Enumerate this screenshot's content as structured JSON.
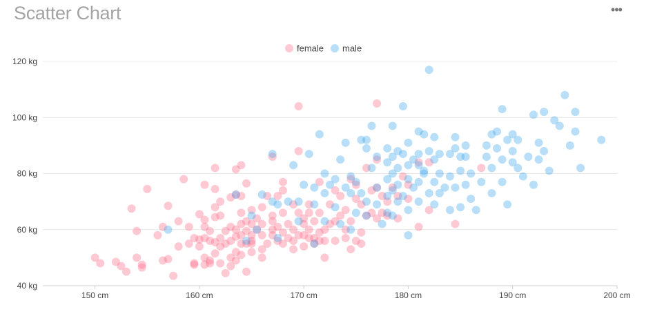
{
  "header": {
    "title": "Scatter Chart",
    "menu_icon": "more-horizontal-icon",
    "menu_glyph": "•••"
  },
  "chart_data": {
    "type": "scatter",
    "title": "Scatter Chart",
    "xlabel": "",
    "ylabel": "",
    "xlim": [
      145,
      200
    ],
    "ylim": [
      40,
      120
    ],
    "x_ticks": [
      150,
      160,
      170,
      180,
      190,
      200
    ],
    "y_ticks": [
      40,
      60,
      80,
      100,
      120
    ],
    "x_tick_labels": [
      "150 cm",
      "160 cm",
      "170 cm",
      "180 cm",
      "190 cm",
      "200 cm"
    ],
    "y_tick_labels": [
      "40 kg",
      "60 kg",
      "80 kg",
      "100 kg",
      "120 kg"
    ],
    "grid": true,
    "legend_position": "top-center",
    "series": [
      {
        "name": "female",
        "color": "#ff6384",
        "points": [
          [
            150,
            50
          ],
          [
            150.5,
            48
          ],
          [
            152,
            48.5
          ],
          [
            152.5,
            47
          ],
          [
            153,
            45
          ],
          [
            153.5,
            67.5
          ],
          [
            154,
            59.5
          ],
          [
            154,
            50
          ],
          [
            154.5,
            47.5
          ],
          [
            154.5,
            46.5
          ],
          [
            155,
            74.5
          ],
          [
            156,
            58
          ],
          [
            156.5,
            61
          ],
          [
            157,
            68.5
          ],
          [
            156.5,
            49
          ],
          [
            157,
            49.5
          ],
          [
            157.5,
            43.5
          ],
          [
            158,
            54
          ],
          [
            158,
            63
          ],
          [
            158.5,
            78
          ],
          [
            159,
            55
          ],
          [
            159,
            61
          ],
          [
            159.5,
            48
          ],
          [
            159.5,
            47.5
          ],
          [
            159.5,
            57
          ],
          [
            160,
            56.5
          ],
          [
            160,
            54
          ],
          [
            160,
            65.5
          ],
          [
            160.5,
            76
          ],
          [
            160.5,
            63.5
          ],
          [
            160.5,
            61
          ],
          [
            160.5,
            57
          ],
          [
            160.5,
            50
          ],
          [
            160.5,
            47.5
          ],
          [
            161,
            59.5
          ],
          [
            161,
            56
          ],
          [
            161,
            49
          ],
          [
            161,
            48
          ],
          [
            161.5,
            82
          ],
          [
            161.5,
            74.5
          ],
          [
            161.5,
            68
          ],
          [
            161.5,
            64.5
          ],
          [
            161.5,
            55.5
          ],
          [
            161.5,
            51.5
          ],
          [
            162,
            70
          ],
          [
            162,
            65
          ],
          [
            162,
            57
          ],
          [
            162,
            54
          ],
          [
            162,
            48
          ],
          [
            162.5,
            59.5
          ],
          [
            162.5,
            55
          ],
          [
            162.5,
            44.5
          ],
          [
            163,
            71.5
          ],
          [
            163,
            61
          ],
          [
            163,
            56
          ],
          [
            163,
            50
          ],
          [
            163,
            47
          ],
          [
            163.5,
            81.5
          ],
          [
            163.5,
            72.5
          ],
          [
            163.5,
            60
          ],
          [
            163.5,
            57.5
          ],
          [
            163.5,
            52
          ],
          [
            163.5,
            49
          ],
          [
            164,
            83
          ],
          [
            164,
            72
          ],
          [
            164,
            66
          ],
          [
            164,
            62
          ],
          [
            164,
            58
          ],
          [
            164,
            55
          ],
          [
            164,
            51
          ],
          [
            164.5,
            76.5
          ],
          [
            164.5,
            63
          ],
          [
            164.5,
            59.5
          ],
          [
            164.5,
            55
          ],
          [
            164.5,
            45
          ],
          [
            165,
            67
          ],
          [
            165,
            62
          ],
          [
            165,
            58
          ],
          [
            165,
            56
          ],
          [
            165,
            55
          ],
          [
            165,
            52
          ],
          [
            165.5,
            60
          ],
          [
            165.5,
            64
          ],
          [
            166,
            50
          ],
          [
            166,
            53
          ],
          [
            166,
            58
          ],
          [
            166,
            62
          ],
          [
            166,
            68
          ],
          [
            166.5,
            72
          ],
          [
            166.5,
            55
          ],
          [
            167,
            60
          ],
          [
            167,
            63
          ],
          [
            167,
            65
          ],
          [
            167,
            86
          ],
          [
            167,
            58
          ],
          [
            167.5,
            72
          ],
          [
            167.5,
            61
          ],
          [
            167.5,
            56
          ],
          [
            168,
            74
          ],
          [
            168,
            77
          ],
          [
            168,
            66
          ],
          [
            168,
            59
          ],
          [
            168,
            55
          ],
          [
            168.5,
            62
          ],
          [
            168.5,
            57
          ],
          [
            169,
            69
          ],
          [
            169,
            60
          ],
          [
            169,
            56
          ],
          [
            169,
            53
          ],
          [
            169.5,
            88
          ],
          [
            169.5,
            104
          ],
          [
            169.5,
            66
          ],
          [
            169.5,
            58
          ],
          [
            170,
            62
          ],
          [
            170,
            58
          ],
          [
            170,
            64
          ],
          [
            170,
            54
          ],
          [
            170.5,
            69
          ],
          [
            170.5,
            66
          ],
          [
            170.5,
            60
          ],
          [
            170.5,
            57
          ],
          [
            171,
            63
          ],
          [
            171,
            55
          ],
          [
            171,
            57
          ],
          [
            171.5,
            77
          ],
          [
            171.5,
            66
          ],
          [
            171.5,
            59
          ],
          [
            171.5,
            56
          ],
          [
            172,
            60
          ],
          [
            172,
            56
          ],
          [
            172,
            50
          ],
          [
            172.5,
            69
          ],
          [
            172.5,
            62
          ],
          [
            173,
            74
          ],
          [
            173,
            63
          ],
          [
            173,
            56
          ],
          [
            173.5,
            72
          ],
          [
            173.5,
            65
          ],
          [
            174,
            67
          ],
          [
            174,
            60
          ],
          [
            174,
            57
          ],
          [
            174.5,
            78
          ],
          [
            174.5,
            63
          ],
          [
            174.5,
            53
          ],
          [
            175,
            76
          ],
          [
            175,
            71
          ],
          [
            175,
            56
          ],
          [
            175.5,
            69
          ],
          [
            175.5,
            59
          ],
          [
            175.5,
            55
          ],
          [
            176,
            82
          ],
          [
            176,
            65
          ],
          [
            176.5,
            74
          ],
          [
            176.5,
            66
          ],
          [
            177,
            105
          ],
          [
            177,
            85
          ],
          [
            177,
            75
          ],
          [
            177,
            64
          ],
          [
            177.5,
            72
          ],
          [
            177.5,
            66
          ],
          [
            178,
            70
          ],
          [
            178,
            65
          ],
          [
            178.5,
            75
          ],
          [
            179,
            72
          ],
          [
            179,
            64
          ],
          [
            179.5,
            79
          ],
          [
            180,
            76
          ],
          [
            180,
            71
          ],
          [
            181,
            84
          ],
          [
            181,
            61
          ],
          [
            182,
            84
          ],
          [
            182,
            67
          ],
          [
            184.5,
            62
          ],
          [
            187,
            82
          ]
        ]
      },
      {
        "name": "male",
        "color": "#36a2eb",
        "points": [
          [
            157,
            60
          ],
          [
            163.5,
            72.5
          ],
          [
            164.5,
            56
          ],
          [
            165,
            65
          ],
          [
            166,
            72.5
          ],
          [
            167,
            87
          ],
          [
            167,
            70
          ],
          [
            167.5,
            57
          ],
          [
            168.5,
            70
          ],
          [
            169,
            83
          ],
          [
            169.5,
            70
          ],
          [
            170,
            76
          ],
          [
            170.5,
            87
          ],
          [
            171,
            75
          ],
          [
            171,
            69
          ],
          [
            171,
            55
          ],
          [
            171.5,
            94
          ],
          [
            172,
            80
          ],
          [
            172,
            73
          ],
          [
            172.5,
            76
          ],
          [
            173,
            78
          ],
          [
            173,
            68
          ],
          [
            173.5,
            85
          ],
          [
            173.5,
            62
          ],
          [
            174,
            91
          ],
          [
            174,
            75
          ],
          [
            174.5,
            73
          ],
          [
            174.5,
            60
          ],
          [
            175,
            77
          ],
          [
            175,
            66
          ],
          [
            175.5,
            92
          ],
          [
            175.5,
            73
          ],
          [
            176,
            92
          ],
          [
            176,
            70
          ],
          [
            176,
            65
          ],
          [
            176.5,
            97
          ],
          [
            176.5,
            82
          ],
          [
            177,
            86
          ],
          [
            177,
            75
          ],
          [
            177,
            69
          ],
          [
            177.5,
            62
          ],
          [
            178,
            89
          ],
          [
            178,
            84
          ],
          [
            178,
            78
          ],
          [
            178,
            72
          ],
          [
            178.5,
            97
          ],
          [
            178.5,
            86
          ],
          [
            178.5,
            80
          ],
          [
            178.5,
            74
          ],
          [
            178.5,
            65
          ],
          [
            179,
            88
          ],
          [
            179,
            82
          ],
          [
            179,
            76
          ],
          [
            179,
            70
          ],
          [
            179.5,
            104
          ],
          [
            179.5,
            87
          ],
          [
            179.5,
            72
          ],
          [
            180,
            91
          ],
          [
            180,
            83
          ],
          [
            180,
            78
          ],
          [
            180,
            67
          ],
          [
            180.5,
            85
          ],
          [
            180.5,
            75
          ],
          [
            181,
            95
          ],
          [
            181,
            87
          ],
          [
            181,
            83
          ],
          [
            181,
            77
          ],
          [
            181,
            70
          ],
          [
            181.5,
            94
          ],
          [
            181.5,
            80
          ],
          [
            182,
            117
          ],
          [
            182,
            88
          ],
          [
            182,
            73
          ],
          [
            182.5,
            93
          ],
          [
            182.5,
            85
          ],
          [
            182.5,
            77
          ],
          [
            182.5,
            69
          ],
          [
            183,
            87
          ],
          [
            183,
            80
          ],
          [
            183.5,
            75
          ],
          [
            184,
            87
          ],
          [
            184,
            79
          ],
          [
            184.5,
            93
          ],
          [
            184.5,
            89
          ],
          [
            184.5,
            75
          ],
          [
            185,
            86
          ],
          [
            185,
            81
          ],
          [
            185,
            68
          ],
          [
            185.5,
            86
          ],
          [
            185.5,
            76
          ],
          [
            186,
            80
          ],
          [
            186.5,
            67
          ],
          [
            187,
            77
          ],
          [
            187.5,
            90
          ],
          [
            187.5,
            86
          ],
          [
            188,
            94
          ],
          [
            188,
            82
          ],
          [
            188,
            73
          ],
          [
            188.5,
            89
          ],
          [
            188.5,
            95
          ],
          [
            189,
            103
          ],
          [
            189,
            85
          ],
          [
            189,
            77
          ],
          [
            189.5,
            92
          ],
          [
            189.5,
            69
          ],
          [
            190,
            94
          ],
          [
            190,
            88
          ],
          [
            190,
            84
          ],
          [
            190.5,
            92
          ],
          [
            191,
            79
          ],
          [
            191.5,
            86
          ],
          [
            192,
            101
          ],
          [
            192,
            76
          ],
          [
            192.5,
            91
          ],
          [
            192.5,
            85
          ],
          [
            193,
            102
          ],
          [
            193,
            88
          ],
          [
            193.5,
            81
          ],
          [
            194,
            99
          ],
          [
            194.5,
            97
          ],
          [
            195,
            108
          ],
          [
            195.5,
            90
          ],
          [
            196,
            95
          ],
          [
            196,
            102
          ],
          [
            196.5,
            82
          ],
          [
            198.5,
            92
          ],
          [
            184,
            67
          ],
          [
            186,
            71
          ],
          [
            183,
            73
          ],
          [
            180,
            58
          ],
          [
            176,
            89
          ],
          [
            174.5,
            79
          ],
          [
            172,
            63
          ],
          [
            169.5,
            63
          ],
          [
            167.5,
            69
          ],
          [
            165.5,
            60
          ],
          [
            178,
            66
          ],
          [
            181.5,
            81
          ],
          [
            185.5,
            90
          ],
          [
            190.5,
            82
          ]
        ]
      }
    ]
  }
}
